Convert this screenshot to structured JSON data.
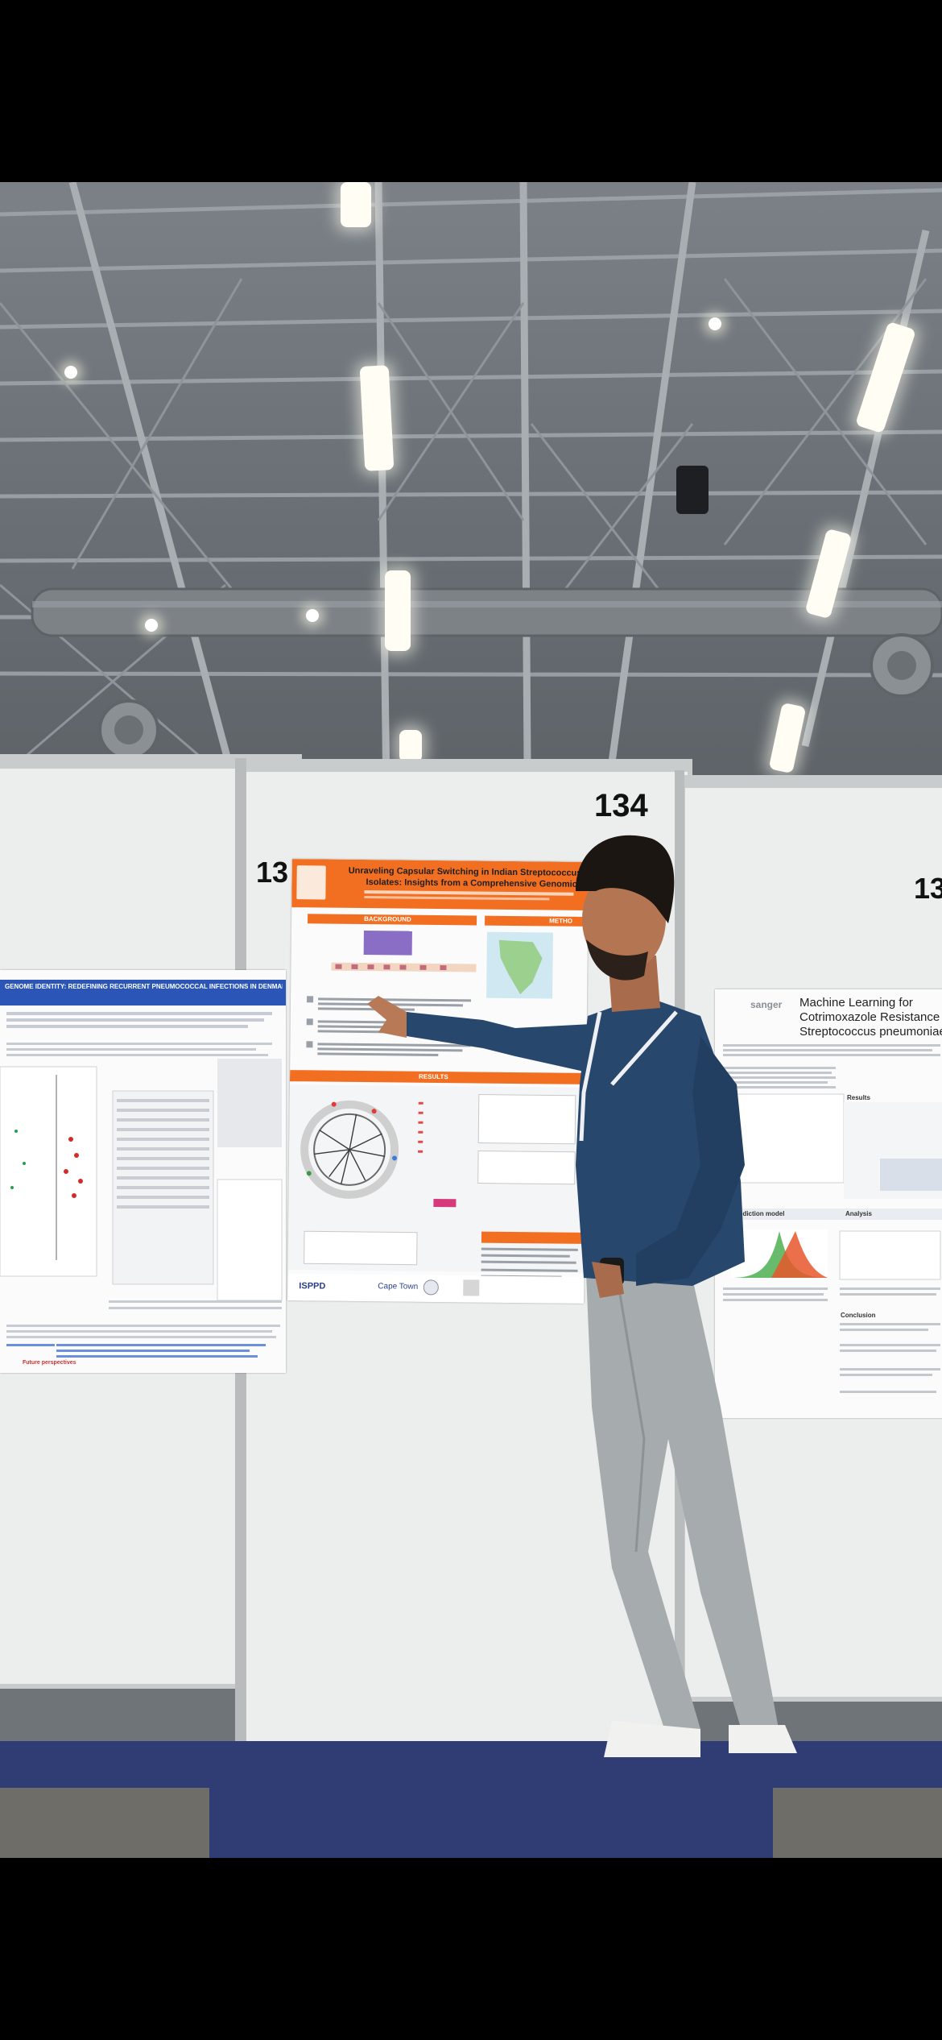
{
  "booths": {
    "left_number": "13",
    "center_number": "134",
    "right_number": "13"
  },
  "posters": {
    "left_title": "GENOME IDENTITY: REDEFINING RECURRENT PNEUMOCOCCAL INFECTIONS IN DENMARK",
    "left_footer_label": "Future perspectives",
    "center_title_line1": "Unraveling Capsular Switching in Indian Streptococcus p",
    "center_title_line2": "Isolates: Insights from a Comprehensive Genomic A",
    "center_section_background": "BACKGROUND",
    "center_section_methods": "METHO",
    "center_section_results": "RESULTS",
    "center_footer_logo": "ISPPD",
    "center_footer_city": "Cape Town",
    "right_brand": "sanger",
    "right_title_line1": "Machine Learning for",
    "right_title_line2": "Cotrimoxazole Resistance Predicti",
    "right_title_line3": "Streptococcus pneumoniae",
    "right_section_results": "Results",
    "right_section_model": "prediction model",
    "right_section_analysis": "Analysis",
    "right_section_conclusion": "Conclusion"
  },
  "colors": {
    "orange_accent": "#f26f21",
    "blue_header": "#2b56b8",
    "floor_blue": "#2f3d74",
    "shirt_blue": "#27476d",
    "trousers_gray": "#a6acae"
  }
}
